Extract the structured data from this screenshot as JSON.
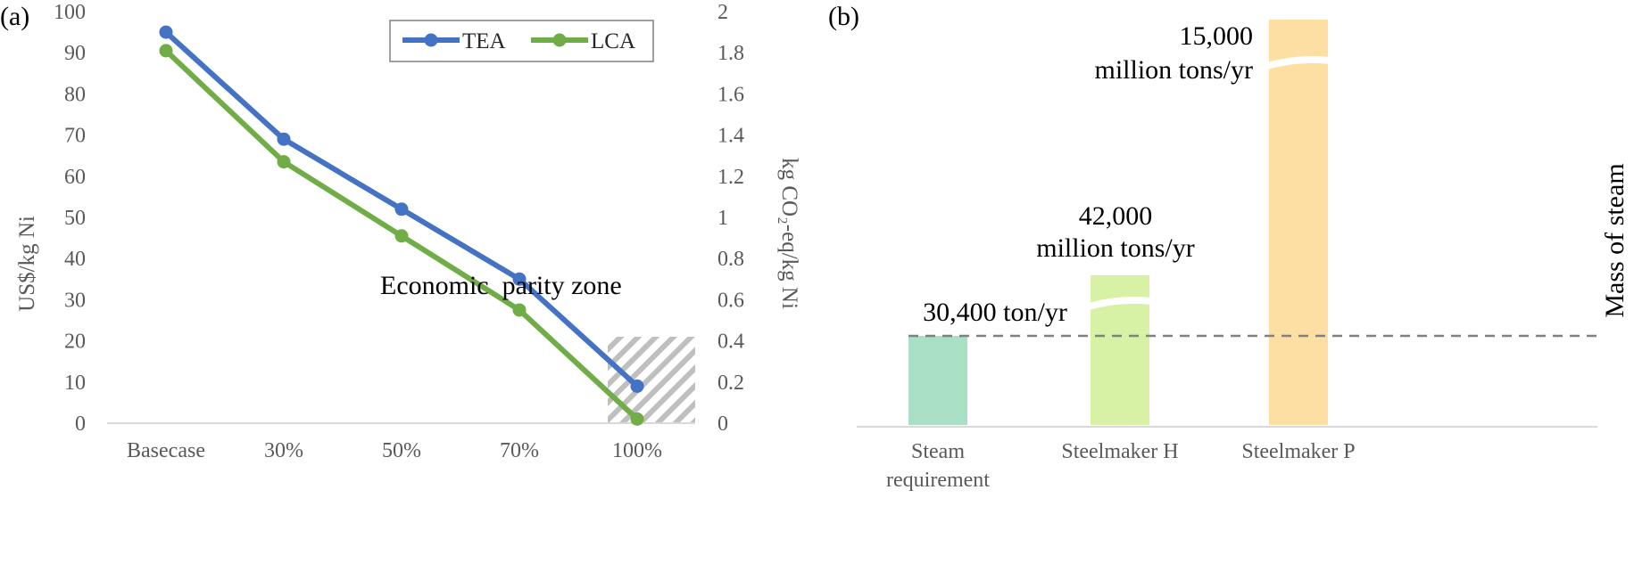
{
  "chart_data": [
    {
      "type": "line",
      "panel_label": "(a)",
      "categories": [
        "Basecase",
        "30%",
        "50%",
        "70%",
        "100%"
      ],
      "ylabel": "US$/kg Ni",
      "ylim": [
        0,
        100
      ],
      "yticks": [
        "0",
        "10",
        "20",
        "30",
        "40",
        "50",
        "60",
        "70",
        "80",
        "90",
        "100"
      ],
      "y2label": "kg CO₂-eq/kg Ni",
      "y2lim": [
        0,
        2
      ],
      "y2ticks": [
        "0",
        "0.2",
        "0.4",
        "0.6",
        "0.8",
        "1",
        "1.2",
        "1.4",
        "1.6",
        "1.8",
        "2"
      ],
      "legend_position": "top-right",
      "series": [
        {
          "name": "TEA",
          "axis": "left",
          "color": "#4472C4",
          "values": [
            95,
            69,
            52,
            35,
            9
          ]
        },
        {
          "name": "LCA",
          "axis": "right",
          "color": "#70AD47",
          "values": [
            1.81,
            1.27,
            0.91,
            0.55,
            0.02
          ]
        }
      ],
      "zone": {
        "label": "Economic  parity zone",
        "y_range": [
          0,
          21
        ],
        "from_category_index": 3.75
      }
    },
    {
      "type": "bar",
      "panel_label": "(b)",
      "categories": [
        "Steam requirement",
        "Steelmaker H",
        "Steelmaker P"
      ],
      "category_lines": [
        [
          "Steam",
          "requirement"
        ],
        [
          "Steelmaker H"
        ],
        [
          "Steelmaker P"
        ]
      ],
      "values_text": [
        "30,400 ton/yr",
        "42,000 million tons/yr",
        "15,000 million tons/yr"
      ],
      "values_text_lines": [
        [
          "30,400 ton/yr"
        ],
        [
          "42,000",
          "million tons/yr"
        ],
        [
          "15,000",
          "million tons/yr"
        ]
      ],
      "axis_break": [
        false,
        true,
        true
      ],
      "colors": [
        "#A9DFC4",
        "#D7F2A4",
        "#FDDFA4"
      ],
      "ylabel": "Mass of steam",
      "reference_line": "Steam requirement"
    }
  ]
}
